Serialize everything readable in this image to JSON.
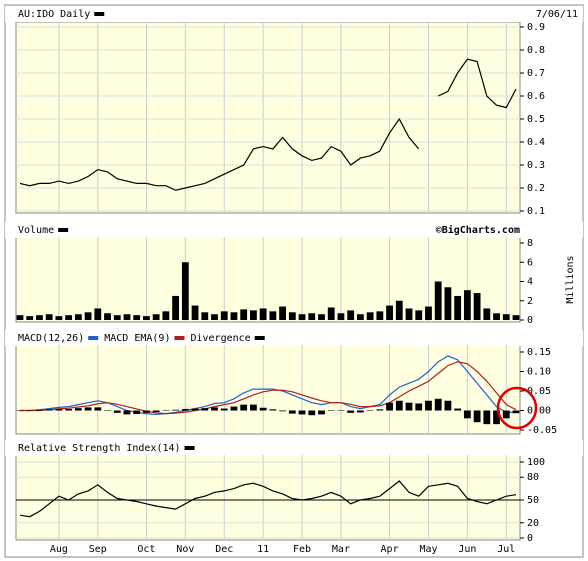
{
  "chart_data": [
    {
      "type": "line",
      "title": "AU:IDO Daily",
      "subtitle": "7/06/11",
      "grid": true,
      "ylim": [
        0.1,
        0.9
      ],
      "yticks": [
        0.1,
        0.2,
        0.3,
        0.4,
        0.5,
        0.6,
        0.7,
        0.8,
        0.9
      ],
      "series": [
        {
          "color": "#000000",
          "values": [
            0.22,
            0.21,
            0.22,
            0.22,
            0.23,
            0.22,
            0.23,
            0.25,
            0.28,
            0.27,
            0.24,
            0.23,
            0.22,
            0.22,
            0.21,
            0.21,
            0.19,
            0.2,
            0.21,
            0.22,
            0.24,
            0.26,
            0.28,
            0.3,
            0.37,
            0.38,
            0.37,
            0.42,
            0.37,
            0.34,
            0.32,
            0.33,
            0.38,
            0.36,
            0.3,
            0.33,
            0.34,
            0.36,
            0.44,
            0.5,
            0.42,
            0.37,
            null,
            0.6,
            0.62,
            0.7,
            0.76,
            0.75,
            0.6,
            0.56,
            0.55,
            0.63
          ]
        }
      ]
    },
    {
      "type": "bar",
      "title": "Volume",
      "annotation": "©BigCharts.com",
      "ylabel": "Millions",
      "grid": false,
      "ylim": [
        0,
        8
      ],
      "yticks": [
        0,
        2,
        4,
        6,
        8
      ],
      "series": [
        {
          "color": "#000000",
          "values": [
            0.5,
            0.4,
            0.5,
            0.6,
            0.4,
            0.5,
            0.6,
            0.8,
            1.2,
            0.7,
            0.5,
            0.6,
            0.5,
            0.4,
            0.6,
            0.9,
            2.5,
            6,
            1.5,
            0.8,
            0.6,
            0.9,
            0.8,
            1.1,
            1,
            1.2,
            0.9,
            1.4,
            0.8,
            0.6,
            0.7,
            0.6,
            1.3,
            0.7,
            1,
            0.6,
            0.8,
            0.9,
            1.5,
            2,
            1.2,
            1,
            1.4,
            4,
            3.4,
            2.5,
            3.1,
            2.8,
            1.2,
            0.7,
            0.6,
            0.5
          ]
        }
      ]
    },
    {
      "type": "macd",
      "grid": false,
      "ylim": [
        -0.05,
        0.15
      ],
      "yticks": [
        -0.05,
        {
          "value": 0,
          "label": "0.00"
        },
        0.05,
        {
          "value": 0.1,
          "label": "0.10"
        },
        0.15
      ],
      "series": [
        {
          "name": "MACD(12,26)",
          "color": "#1f5fd6",
          "type": "line",
          "values": [
            0,
            0,
            0.002,
            0.005,
            0.008,
            0.01,
            0.015,
            0.02,
            0.025,
            0.02,
            0.01,
            0,
            -0.005,
            -0.008,
            -0.01,
            -0.008,
            -0.005,
            0,
            0.005,
            0.01,
            0.018,
            0.02,
            0.03,
            0.045,
            0.055,
            0.055,
            0.055,
            0.05,
            0.04,
            0.03,
            0.02,
            0.015,
            0.02,
            0.02,
            0.01,
            0.005,
            0.01,
            0.015,
            0.04,
            0.06,
            0.07,
            0.08,
            0.1,
            0.125,
            0.14,
            0.13,
            0.1,
            0.07,
            0.04,
            0.01,
            -0.005,
            -0.005
          ]
        },
        {
          "name": "MACD EMA(9)",
          "color": "#b02020",
          "type": "line",
          "values": [
            0,
            0,
            0,
            0.002,
            0.004,
            0.006,
            0.009,
            0.012,
            0.017,
            0.02,
            0.016,
            0.01,
            0.004,
            -0.002,
            -0.006,
            -0.008,
            -0.007,
            -0.004,
            0,
            0.004,
            0.01,
            0.015,
            0.02,
            0.03,
            0.04,
            0.048,
            0.052,
            0.052,
            0.048,
            0.04,
            0.032,
            0.025,
            0.02,
            0.02,
            0.016,
            0.01,
            0.01,
            0.012,
            0.02,
            0.035,
            0.05,
            0.062,
            0.075,
            0.095,
            0.115,
            0.125,
            0.12,
            0.1,
            0.075,
            0.045,
            0.015,
            0.002
          ]
        },
        {
          "name": "Divergence",
          "color": "#000000",
          "type": "bar",
          "values": [
            0,
            0,
            0.002,
            0.003,
            0.004,
            0.004,
            0.006,
            0.008,
            0.008,
            0,
            -0.006,
            -0.01,
            -0.009,
            -0.006,
            -0.004,
            0,
            0.002,
            0.004,
            0.005,
            0.006,
            0.008,
            0.005,
            0.01,
            0.015,
            0.015,
            0.007,
            0.003,
            -0.002,
            -0.008,
            -0.01,
            -0.012,
            -0.01,
            0,
            0,
            -0.006,
            -0.005,
            0,
            0.003,
            0.02,
            0.025,
            0.02,
            0.018,
            0.025,
            0.03,
            0.025,
            0.005,
            -0.02,
            -0.03,
            -0.035,
            -0.035,
            -0.02,
            -0.007
          ]
        }
      ]
    },
    {
      "type": "line",
      "title": "Relative Strength Index(14)",
      "grid": true,
      "ylim": [
        0,
        100
      ],
      "yticks": [
        0,
        20,
        50,
        80,
        100
      ],
      "xticks": [
        {
          "value": 4,
          "label": "Aug"
        },
        {
          "value": 8,
          "label": "Sep"
        },
        {
          "value": 13,
          "label": "Oct"
        },
        {
          "value": 17,
          "label": "Nov"
        },
        {
          "value": 21,
          "label": "Dec"
        },
        {
          "value": 25,
          "label": "11"
        },
        {
          "value": 29,
          "label": "Feb"
        },
        {
          "value": 33,
          "label": "Mar"
        },
        {
          "value": 38,
          "label": "Apr"
        },
        {
          "value": 42,
          "label": "May"
        },
        {
          "value": 46,
          "label": "Jun"
        },
        {
          "value": 50,
          "label": "Jul"
        }
      ],
      "series": [
        {
          "color": "#000000",
          "values": [
            30,
            28,
            35,
            45,
            55,
            50,
            58,
            62,
            70,
            60,
            52,
            50,
            48,
            45,
            42,
            40,
            38,
            45,
            52,
            55,
            60,
            62,
            65,
            70,
            72,
            68,
            62,
            58,
            52,
            50,
            52,
            55,
            60,
            55,
            45,
            50,
            52,
            55,
            65,
            75,
            60,
            55,
            68,
            70,
            72,
            68,
            52,
            48,
            45,
            50,
            55,
            57
          ]
        }
      ]
    }
  ]
}
